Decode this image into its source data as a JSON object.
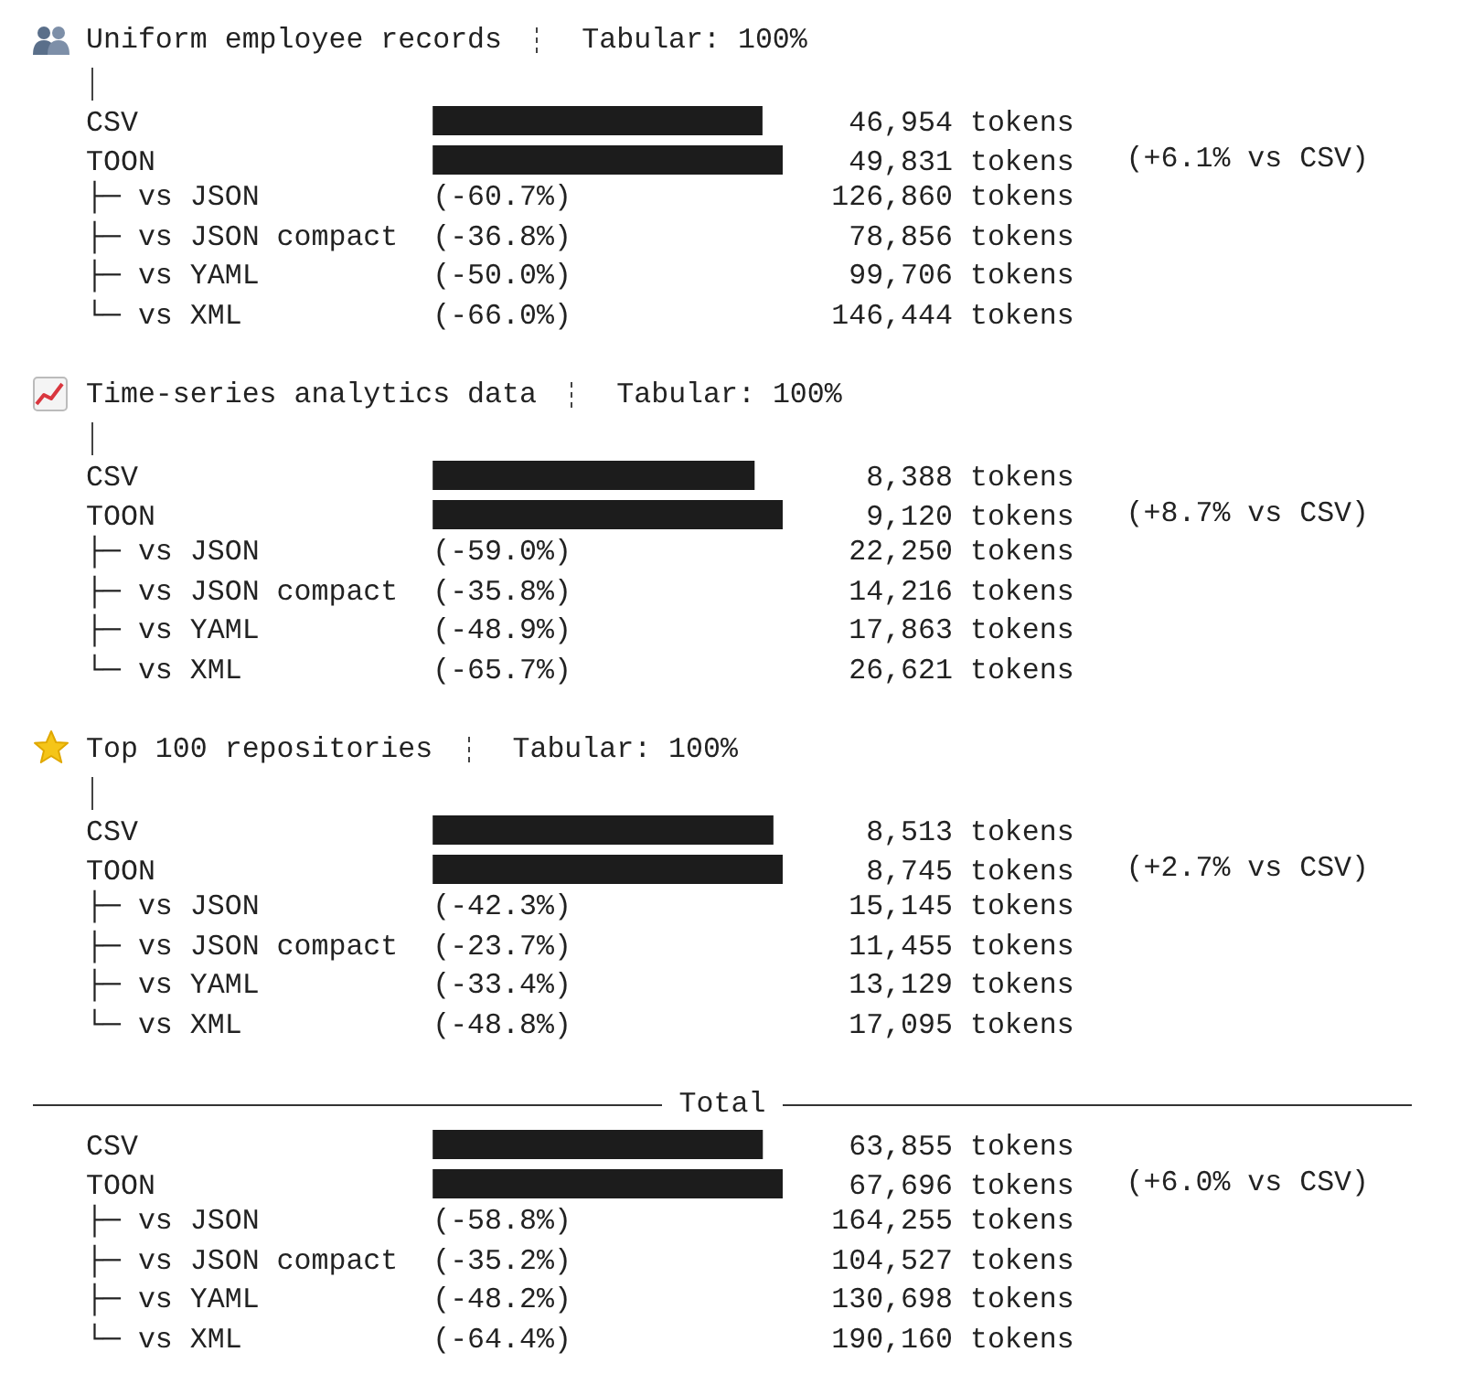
{
  "chart_data": [
    {
      "type": "bar",
      "orientation": "horizontal",
      "title": "Uniform employee records",
      "subtitle": "Tabular: 100%",
      "categories": [
        "CSV",
        "TOON"
      ],
      "values": [
        46954,
        49831
      ],
      "value_labels": [
        "46,954 tokens",
        "49,831 tokens"
      ],
      "color": "#1c1c1c",
      "annotations": [
        "(+6.1% vs CSV)",
        "├─ vs JSON          (-60.7%)               126,860 tokens",
        "├─ vs JSON compact  (-36.8%)                78,856 tokens",
        "├─ vs YAML          (-50.0%)                99,706 tokens",
        "└─ vs XML           (-66.0%)               146,444 tokens"
      ]
    },
    {
      "type": "bar",
      "orientation": "horizontal",
      "title": "Time-series analytics data",
      "subtitle": "Tabular: 100%",
      "categories": [
        "CSV",
        "TOON"
      ],
      "values": [
        8388,
        9120
      ],
      "value_labels": [
        "8,388 tokens",
        "9,120 tokens"
      ],
      "color": "#1c1c1c",
      "annotations": [
        "(+8.7% vs CSV)",
        "├─ vs JSON          (-59.0%)                22,250 tokens",
        "├─ vs JSON compact  (-35.8%)                14,216 tokens",
        "├─ vs YAML          (-48.9%)                17,863 tokens",
        "└─ vs XML           (-65.7%)                26,621 tokens"
      ]
    },
    {
      "type": "bar",
      "orientation": "horizontal",
      "title": "Top 100 repositories",
      "subtitle": "Tabular: 100%",
      "categories": [
        "CSV",
        "TOON"
      ],
      "values": [
        8513,
        8745
      ],
      "value_labels": [
        "8,513 tokens",
        "8,745 tokens"
      ],
      "color": "#1c1c1c",
      "annotations": [
        "(+2.7% vs CSV)",
        "├─ vs JSON          (-42.3%)                15,145 tokens",
        "├─ vs JSON compact  (-23.7%)                11,455 tokens",
        "├─ vs YAML          (-33.4%)                13,129 tokens",
        "└─ vs XML           (-48.8%)                17,095 tokens"
      ]
    },
    {
      "type": "bar",
      "orientation": "horizontal",
      "title": "Total",
      "categories": [
        "CSV",
        "TOON"
      ],
      "values": [
        63855,
        67696
      ],
      "value_labels": [
        "63,855 tokens",
        "67,696 tokens"
      ],
      "color": "#1c1c1c",
      "annotations": [
        "(+6.0% vs CSV)",
        "├─ vs JSON          (-58.8%)               164,255 tokens",
        "├─ vs JSON compact  (-35.2%)               104,527 tokens",
        "├─ vs YAML          (-48.2%)               130,698 tokens",
        "└─ vs XML           (-64.4%)               190,160 tokens"
      ]
    }
  ]
}
